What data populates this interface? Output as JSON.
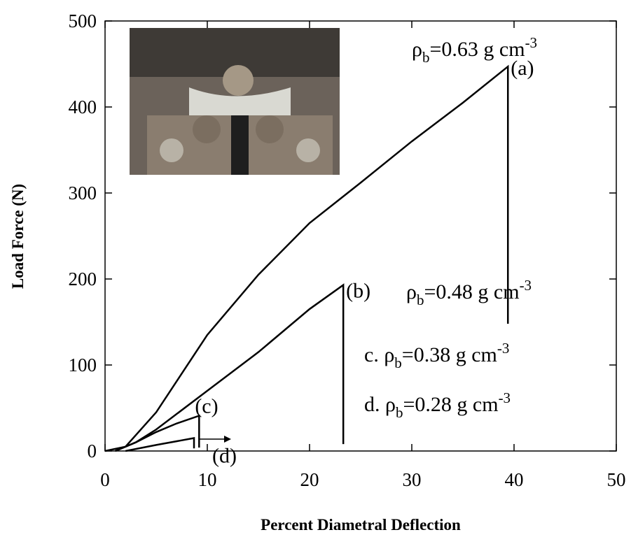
{
  "chart_data": {
    "type": "line",
    "x_label": "Percent Diametral Deflection",
    "y_label": "Load  Force (N)",
    "xlim": [
      0,
      50
    ],
    "xticks": [
      0,
      10,
      20,
      30,
      40,
      50
    ],
    "ylim": [
      0,
      500
    ],
    "yticks": [
      0,
      100,
      200,
      300,
      400,
      500
    ],
    "series": [
      {
        "name": "(a)",
        "color": "#000000",
        "x": [
          0,
          2,
          5,
          10,
          15,
          20,
          25,
          30,
          35,
          39.4,
          39.4
        ],
        "values": [
          0,
          5,
          45,
          135,
          205,
          265,
          312,
          360,
          405,
          447,
          148
        ]
      },
      {
        "name": "(b)",
        "color": "#000000",
        "x": [
          1,
          3,
          5,
          10,
          15,
          20,
          23.3,
          23.3
        ],
        "values": [
          0,
          10,
          25,
          70,
          115,
          165,
          193,
          8
        ]
      },
      {
        "name": "(c)",
        "color": "#000000",
        "x": [
          1,
          3,
          5,
          7,
          9.2,
          9.2
        ],
        "values": [
          0,
          10,
          22,
          32,
          41,
          4
        ]
      },
      {
        "name": "(d)",
        "color": "#000000",
        "x": [
          2,
          5,
          8.7,
          8.7
        ],
        "values": [
          0,
          7,
          15,
          3
        ]
      }
    ],
    "annotations": [
      {
        "main": "ρ",
        "sub": "b",
        "rest": "=0.63 g cm",
        "sup": "-3"
      },
      {
        "main": "ρ",
        "sub": "b",
        "rest": "=0.48 g cm",
        "sup": "-3"
      },
      {
        "main": "c. ρ",
        "sub": "b",
        "rest": "=0.38 g cm",
        "sup": "-3"
      },
      {
        "main": "d. ρ",
        "sub": "b",
        "rest": "=0.28 g cm",
        "sup": "-3"
      }
    ]
  }
}
